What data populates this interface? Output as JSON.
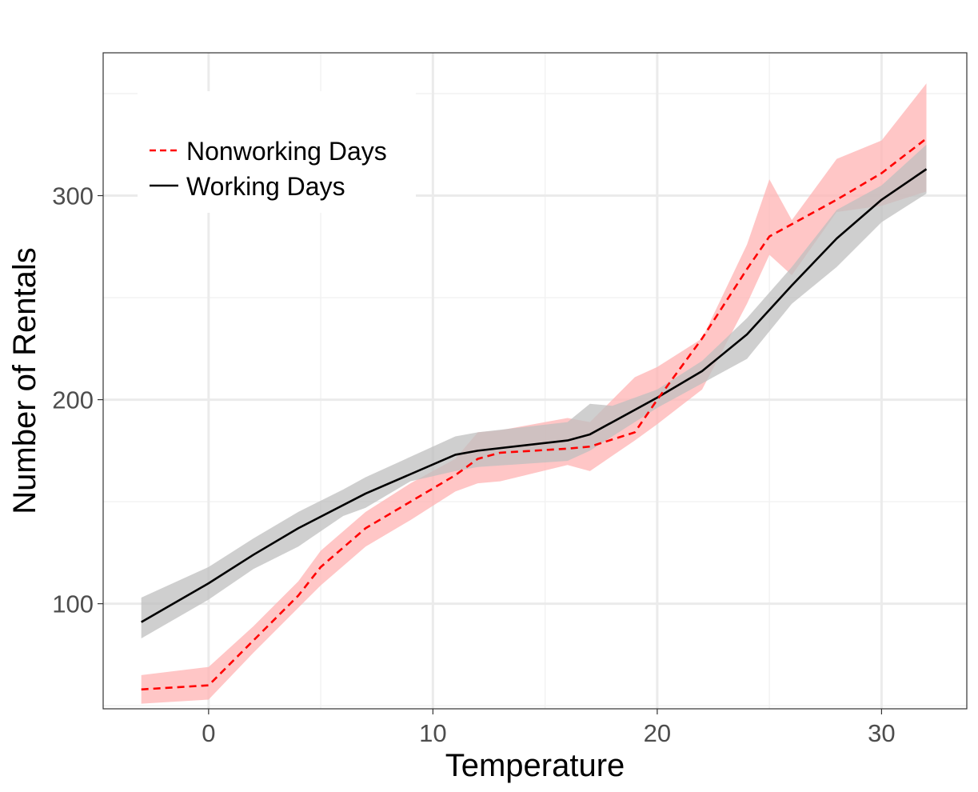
{
  "chart_data": {
    "type": "line",
    "title": "",
    "xlabel": "Temperature",
    "ylabel": "Number of Rentals",
    "xlim": [
      -4.7,
      33.8
    ],
    "ylim": [
      48.5,
      370
    ],
    "x_ticks": [
      0,
      10,
      20,
      30
    ],
    "x_tick_labels": [
      "0",
      "10",
      "20",
      "30"
    ],
    "y_ticks": [
      100,
      200,
      300
    ],
    "y_tick_labels": [
      "100",
      "200",
      "300"
    ],
    "grid": true,
    "legend_position": "top-left",
    "series": [
      {
        "name": "Nonworking Days",
        "color": "#ff0000",
        "band_color": "#ffb3b3",
        "line_style": "dashed",
        "points": [
          [
            -3,
            58
          ],
          [
            0,
            60
          ],
          [
            2,
            82
          ],
          [
            4,
            104
          ],
          [
            5,
            118
          ],
          [
            7,
            137
          ],
          [
            9,
            150
          ],
          [
            11,
            163
          ],
          [
            12,
            171
          ],
          [
            13,
            174
          ],
          [
            16,
            176
          ],
          [
            17,
            177
          ],
          [
            19,
            184
          ],
          [
            20,
            200
          ],
          [
            22,
            230
          ],
          [
            24,
            264
          ],
          [
            25,
            280
          ],
          [
            28,
            298
          ],
          [
            30,
            311
          ],
          [
            32,
            328
          ]
        ],
        "upper": [
          [
            -3,
            65
          ],
          [
            0,
            69
          ],
          [
            2,
            89
          ],
          [
            4,
            111
          ],
          [
            5,
            126
          ],
          [
            7,
            145
          ],
          [
            9,
            159
          ],
          [
            11,
            171
          ],
          [
            12,
            184
          ],
          [
            13,
            185
          ],
          [
            16,
            191
          ],
          [
            17,
            189
          ],
          [
            19,
            211
          ],
          [
            20,
            216
          ],
          [
            22,
            230
          ],
          [
            24,
            276
          ],
          [
            25,
            308
          ],
          [
            26,
            288
          ],
          [
            28,
            318
          ],
          [
            30,
            327
          ],
          [
            32,
            355
          ]
        ],
        "lower": [
          [
            -3,
            51
          ],
          [
            0,
            53
          ],
          [
            2,
            76
          ],
          [
            4,
            98
          ],
          [
            5,
            109
          ],
          [
            7,
            128
          ],
          [
            9,
            141
          ],
          [
            11,
            155
          ],
          [
            12,
            159
          ],
          [
            13,
            160
          ],
          [
            16,
            168
          ],
          [
            17,
            165
          ],
          [
            19,
            180
          ],
          [
            20,
            188
          ],
          [
            22,
            205
          ],
          [
            24,
            247
          ],
          [
            25,
            271
          ],
          [
            26,
            261
          ],
          [
            28,
            292
          ],
          [
            30,
            295
          ],
          [
            32,
            302
          ]
        ]
      },
      {
        "name": "Working Days",
        "color": "#000000",
        "band_color": "#bfbfbf",
        "line_style": "solid",
        "points": [
          [
            -3,
            91
          ],
          [
            0,
            110
          ],
          [
            2,
            124
          ],
          [
            4,
            137
          ],
          [
            7,
            154
          ],
          [
            11,
            173
          ],
          [
            12,
            175
          ],
          [
            16,
            180
          ],
          [
            17,
            183
          ],
          [
            20,
            201
          ],
          [
            22,
            214
          ],
          [
            24,
            232
          ],
          [
            26,
            256
          ],
          [
            28,
            279
          ],
          [
            30,
            298
          ],
          [
            32,
            313
          ]
        ],
        "upper": [
          [
            -3,
            103
          ],
          [
            0,
            118
          ],
          [
            2,
            132
          ],
          [
            4,
            145
          ],
          [
            6,
            156
          ],
          [
            7,
            162
          ],
          [
            11,
            182
          ],
          [
            12,
            184
          ],
          [
            16,
            189
          ],
          [
            17,
            198
          ],
          [
            18,
            197
          ],
          [
            20,
            205
          ],
          [
            22,
            219
          ],
          [
            24,
            240
          ],
          [
            26,
            265
          ],
          [
            28,
            293
          ],
          [
            30,
            305
          ],
          [
            32,
            325
          ]
        ],
        "lower": [
          [
            -3,
            83
          ],
          [
            0,
            102
          ],
          [
            2,
            117
          ],
          [
            4,
            128
          ],
          [
            6,
            143
          ],
          [
            7,
            147
          ],
          [
            9,
            160
          ],
          [
            11,
            165
          ],
          [
            12,
            167
          ],
          [
            16,
            170
          ],
          [
            17,
            175
          ],
          [
            20,
            196
          ],
          [
            22,
            208
          ],
          [
            24,
            220
          ],
          [
            26,
            247
          ],
          [
            28,
            265
          ],
          [
            30,
            287
          ],
          [
            32,
            301
          ]
        ]
      }
    ]
  }
}
